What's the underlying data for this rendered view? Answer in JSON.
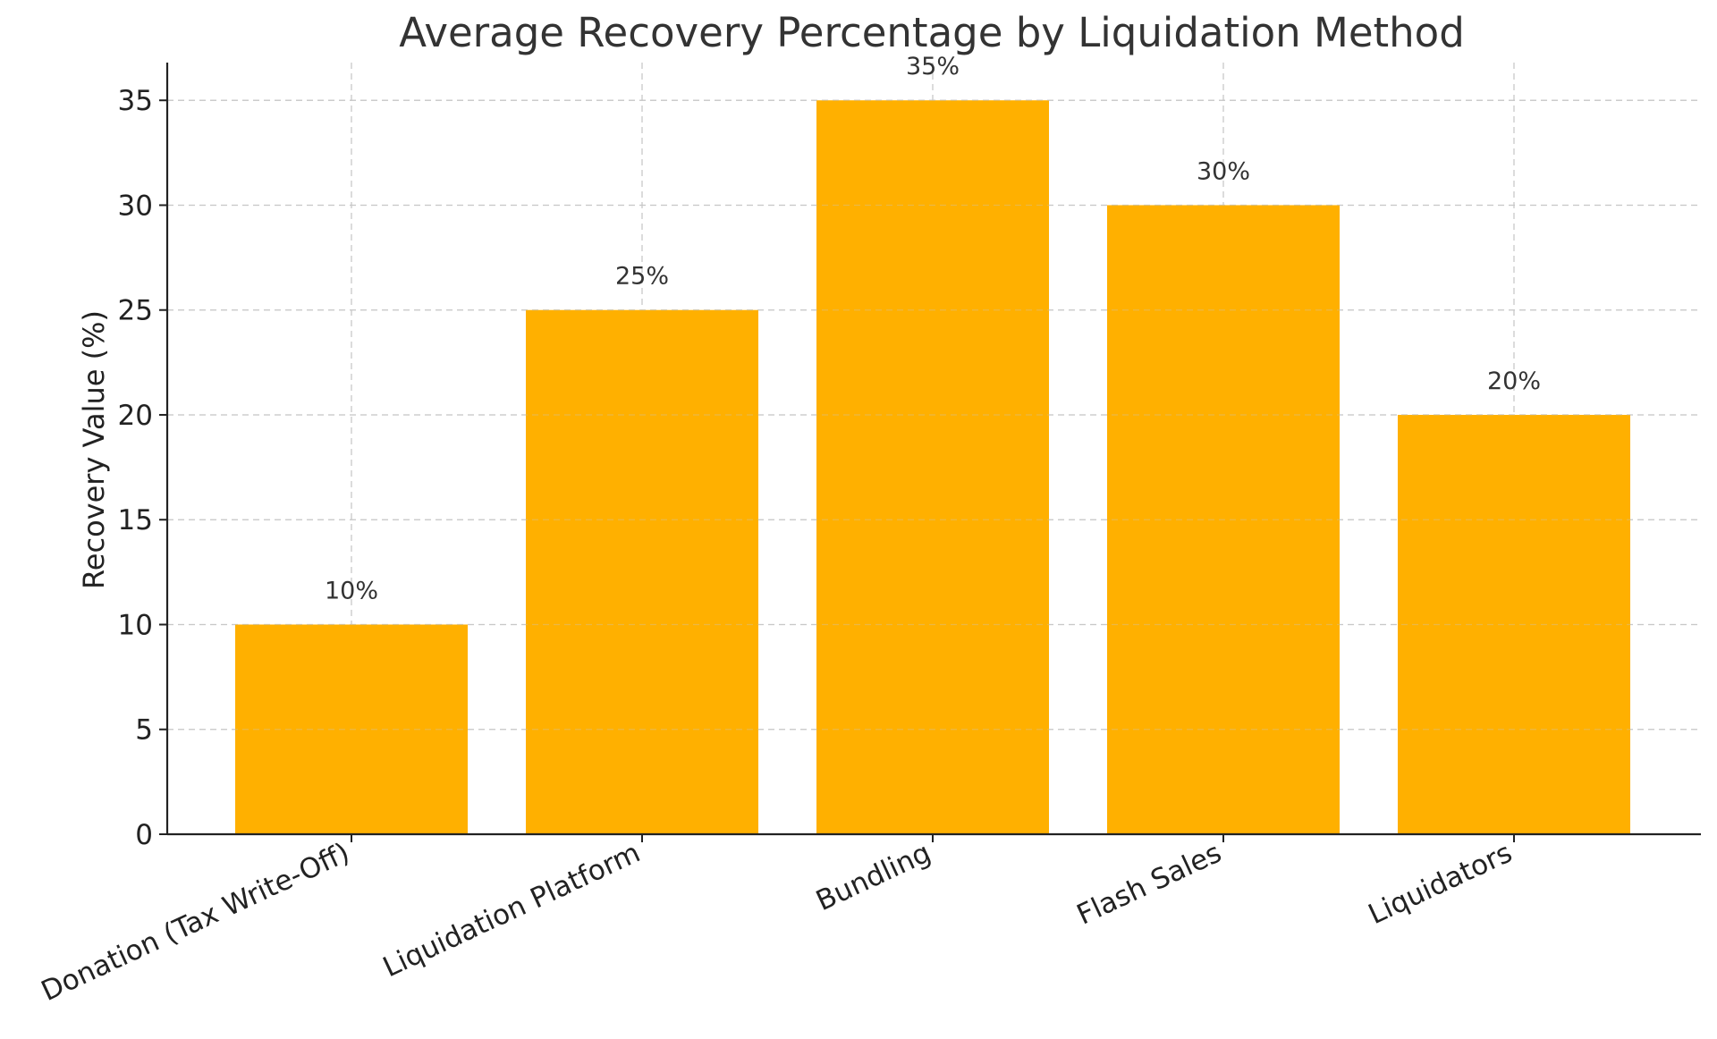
{
  "chart_data": {
    "type": "bar",
    "title": "Average Recovery Percentage by Liquidation Method",
    "xlabel": "",
    "ylabel": "Recovery Value (%)",
    "categories": [
      "Donation (Tax Write-Off)",
      "Liquidation Platform",
      "Bundling",
      "Flash Sales",
      "Liquidators"
    ],
    "values": [
      10,
      25,
      35,
      30,
      20
    ],
    "data_labels": [
      "10%",
      "25%",
      "35%",
      "30%",
      "20%"
    ],
    "ylim": [
      0,
      36.8
    ],
    "yticks": [
      0,
      5,
      10,
      15,
      20,
      25,
      30,
      35
    ],
    "grid": true,
    "bar_color": "#FFB000"
  }
}
